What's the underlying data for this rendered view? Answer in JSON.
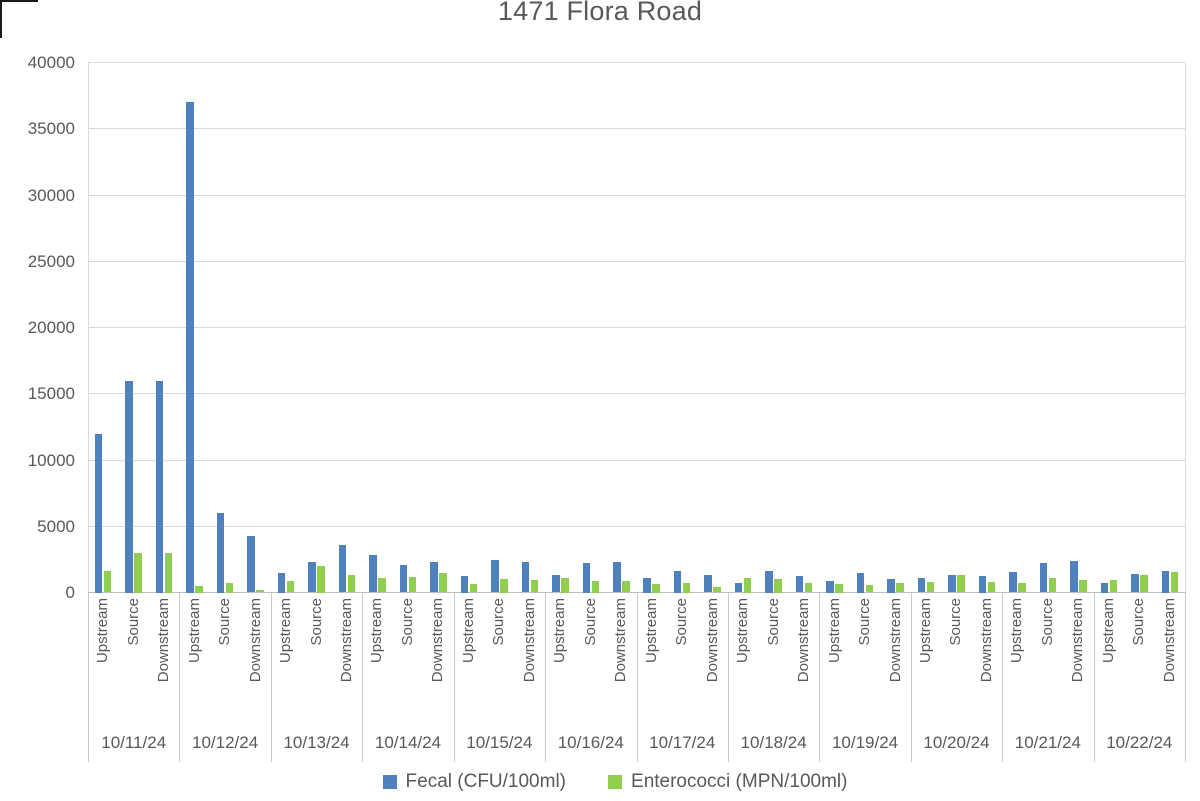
{
  "title": "1471 Flora Road",
  "colors": {
    "fecal": "#4e81bd",
    "entero": "#8fce4e",
    "gridline": "#d9d9d9",
    "axis": "#bfbfbf",
    "text": "#595959"
  },
  "chart_data": {
    "type": "bar",
    "title": "1471 Flora Road",
    "dates": [
      "10/11/24",
      "10/12/24",
      "10/13/24",
      "10/14/24",
      "10/15/24",
      "10/16/24",
      "10/17/24",
      "10/18/24",
      "10/19/24",
      "10/20/24",
      "10/21/24",
      "10/22/24"
    ],
    "subcategories": [
      "Upstream",
      "Source",
      "Downstream"
    ],
    "series": [
      {
        "name": "Fecal (CFU/100ml)",
        "color": "#4e81bd",
        "values": [
          12000,
          16000,
          16000,
          37000,
          6000,
          4300,
          1500,
          2300,
          3600,
          2850,
          2100,
          2300,
          1250,
          2450,
          2275,
          1300,
          2250,
          2300,
          1125,
          1625,
          1300,
          725,
          1625,
          1225,
          875,
          1500,
          1000,
          1100,
          1300,
          1250,
          1575,
          2200,
          2350,
          750,
          1425,
          1625
        ]
      },
      {
        "name": "Enterococci (MPN/100ml)",
        "color": "#8fce4e",
        "values": [
          1600,
          3000,
          3000,
          500,
          750,
          200,
          850,
          2000,
          1350,
          1100,
          1150,
          1450,
          675,
          1000,
          925,
          1125,
          875,
          900,
          625,
          750,
          425,
          1125,
          1000,
          700,
          625,
          575,
          700,
          800,
          1300,
          800,
          700,
          1100,
          925,
          925,
          1350,
          1550
        ]
      }
    ],
    "ylim": [
      0,
      40000
    ],
    "yticks": [
      0,
      5000,
      10000,
      15000,
      20000,
      25000,
      30000,
      35000,
      40000
    ],
    "xlabel": "",
    "ylabel": "",
    "grid": true,
    "legend_position": "bottom"
  }
}
